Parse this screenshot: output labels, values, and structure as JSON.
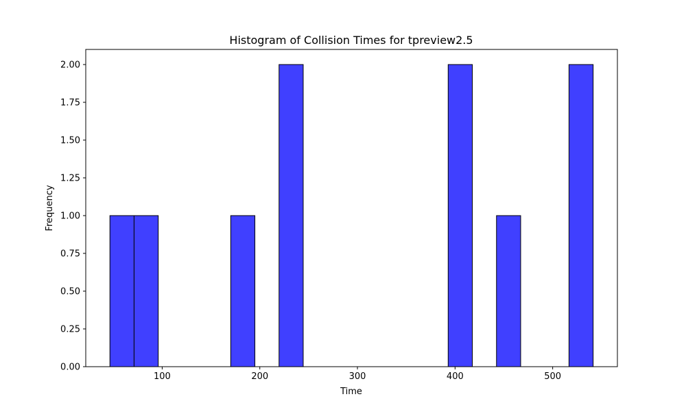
{
  "chart_data": {
    "type": "bar",
    "title": "Histogram of Collision Times for tpreview2.5",
    "xlabel": "Time",
    "ylabel": "Frequency",
    "xlim": [
      21.7,
      566.3
    ],
    "ylim": [
      0,
      2.1
    ],
    "grid": false,
    "bar_color": "#4040ff",
    "edge_color": "#000000",
    "bin_width": 24.75,
    "bins": [
      {
        "start": 46.45,
        "end": 71.2,
        "count": 1
      },
      {
        "start": 71.2,
        "end": 95.95,
        "count": 1
      },
      {
        "start": 170.2,
        "end": 194.95,
        "count": 1
      },
      {
        "start": 219.7,
        "end": 244.45,
        "count": 2
      },
      {
        "start": 392.95,
        "end": 417.7,
        "count": 2
      },
      {
        "start": 442.45,
        "end": 467.2,
        "count": 1
      },
      {
        "start": 516.7,
        "end": 541.45,
        "count": 2
      }
    ],
    "x_ticks": [
      {
        "value": 100,
        "label": "100"
      },
      {
        "value": 200,
        "label": "200"
      },
      {
        "value": 300,
        "label": "300"
      },
      {
        "value": 400,
        "label": "400"
      },
      {
        "value": 500,
        "label": "500"
      }
    ],
    "y_ticks": [
      {
        "value": 0,
        "label": "0.00"
      },
      {
        "value": 0.25,
        "label": "0.25"
      },
      {
        "value": 0.5,
        "label": "0.50"
      },
      {
        "value": 0.75,
        "label": "0.75"
      },
      {
        "value": 1.0,
        "label": "1.00"
      },
      {
        "value": 1.25,
        "label": "1.25"
      },
      {
        "value": 1.5,
        "label": "1.50"
      },
      {
        "value": 1.75,
        "label": "1.75"
      },
      {
        "value": 2.0,
        "label": "2.00"
      }
    ]
  }
}
